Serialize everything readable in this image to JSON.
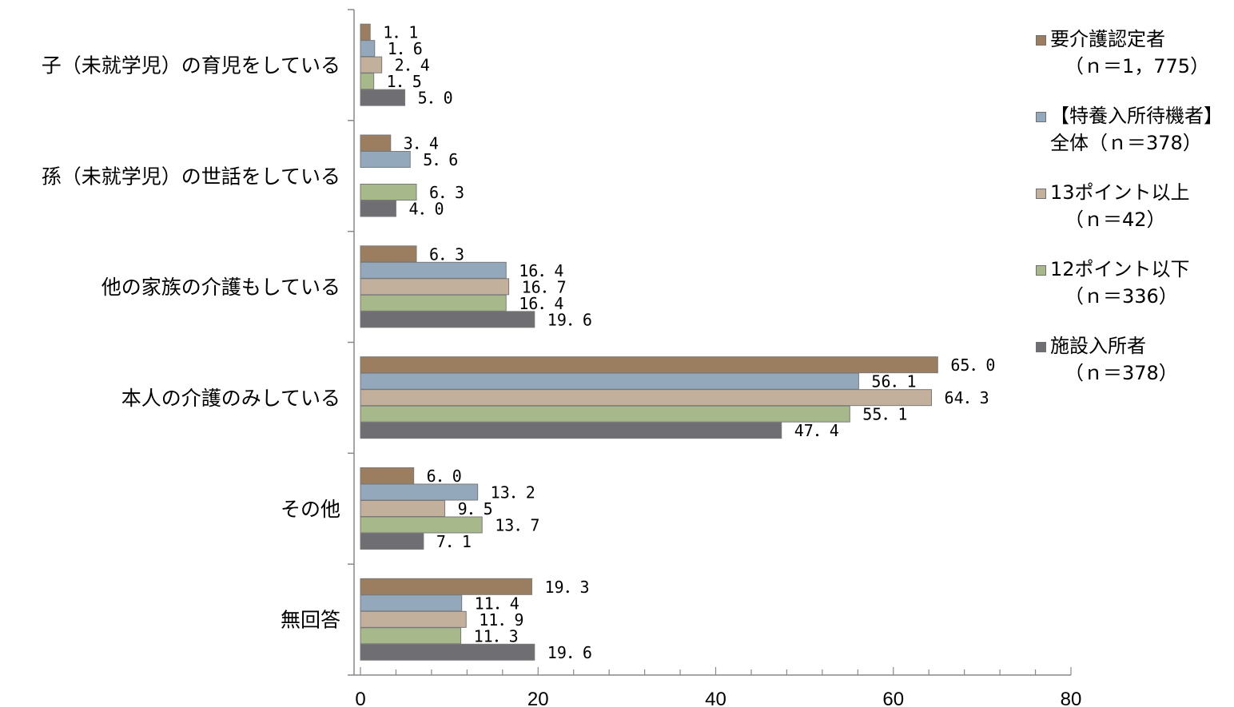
{
  "chart_data": {
    "type": "bar",
    "orientation": "horizontal",
    "categories": [
      "子（未就学児）の育児をしている",
      "孫（未就学児）の世話をしている",
      "他の家族の介護もしている",
      "本人の介護のみしている",
      "その他",
      "無回答"
    ],
    "series": [
      {
        "name": "要介護認定者",
        "n_label": "（ｎ＝1，775）",
        "color": "#9b7d5f",
        "values": [
          1.1,
          3.4,
          6.3,
          65.0,
          6.0,
          19.3
        ],
        "labels": [
          "1．1",
          "3．4",
          "6．3",
          "65．0",
          "6．0",
          "19．3"
        ]
      },
      {
        "name": "【特養入所待機者】",
        "n_label": "全体（ｎ＝378）",
        "color": "#93a9bb",
        "values": [
          1.6,
          5.6,
          16.4,
          56.1,
          13.2,
          11.4
        ],
        "labels": [
          "1．6",
          "5．6",
          "16．4",
          "56．1",
          "13．2",
          "11．4"
        ]
      },
      {
        "name": "13ポイント以上",
        "n_label": "（ｎ＝42）",
        "color": "#c2b09c",
        "values": [
          2.4,
          null,
          16.7,
          64.3,
          9.5,
          11.9
        ],
        "labels": [
          "2．4",
          "",
          "16．7",
          "64．3",
          "9．5",
          "11．9"
        ]
      },
      {
        "name": "12ポイント以下",
        "n_label": "（ｎ＝336）",
        "color": "#a7b98b",
        "values": [
          1.5,
          6.3,
          16.4,
          55.1,
          13.7,
          11.3
        ],
        "labels": [
          "1．5",
          "6．3",
          "16．4",
          "55．1",
          "13．7",
          "11．3"
        ]
      },
      {
        "name": "施設入所者",
        "n_label": "（ｎ＝378）",
        "color": "#6f6f73",
        "values": [
          5.0,
          4.0,
          19.6,
          47.4,
          7.1,
          19.6
        ],
        "labels": [
          "5．0",
          "4．0",
          "19．6",
          "47．4",
          "7．1",
          "19．6"
        ]
      }
    ],
    "xlim": [
      0,
      80
    ],
    "xticks": [
      0,
      20,
      40,
      60,
      80
    ],
    "minor_tick_step": 4,
    "legend_position": "right",
    "grid": false
  }
}
